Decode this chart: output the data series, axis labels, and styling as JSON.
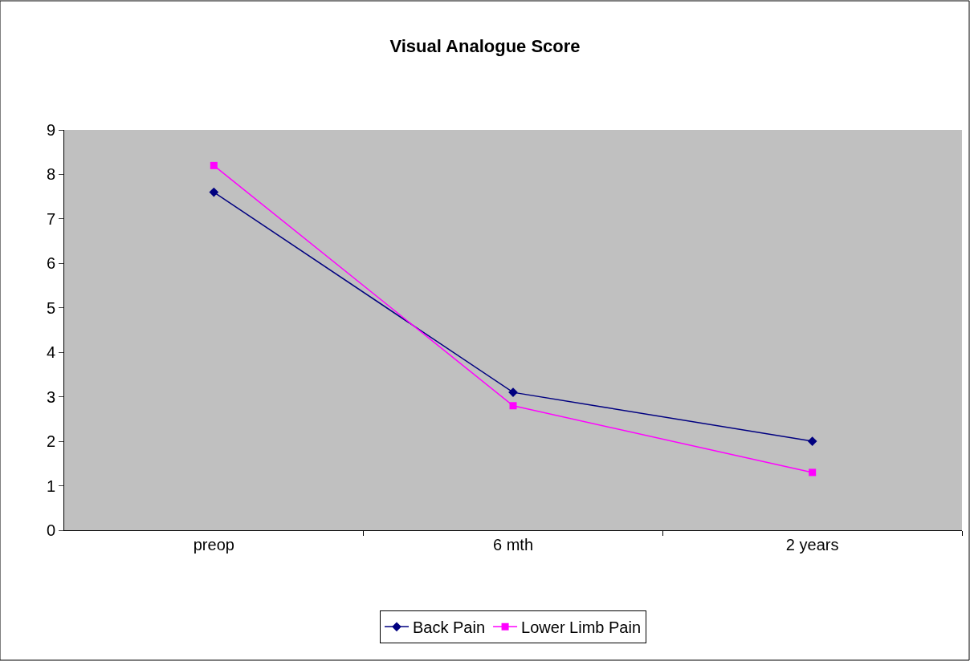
{
  "chart_data": {
    "type": "line",
    "title": "Visual Analogue Score",
    "categories": [
      "preop",
      "6 mth",
      "2 years"
    ],
    "series": [
      {
        "name": "Back Pain",
        "color": "#000080",
        "marker": "diamond",
        "values": [
          7.6,
          3.1,
          2.0
        ]
      },
      {
        "name": "Lower Limb Pain",
        "color": "#ff00ff",
        "marker": "square",
        "values": [
          8.2,
          2.8,
          1.3
        ]
      }
    ],
    "ylim": [
      0,
      9
    ],
    "yticks": [
      0,
      1,
      2,
      3,
      4,
      5,
      6,
      7,
      8,
      9
    ],
    "grid": false,
    "legend": "bottom"
  }
}
